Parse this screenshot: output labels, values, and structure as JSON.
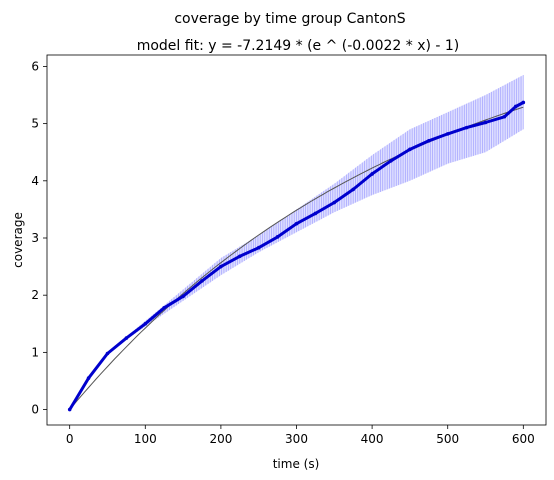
{
  "chart_data": {
    "type": "line",
    "title": "coverage by time group CantonS",
    "subtitle": "model fit: y = -7.2149 * (e ^ (-0.0022 * x) - 1)",
    "xlabel": "time (s)",
    "ylabel": "coverage",
    "xlim": [
      -30,
      630
    ],
    "ylim": [
      -0.27,
      6.2
    ],
    "xticks": [
      0,
      100,
      200,
      300,
      400,
      500,
      600
    ],
    "yticks": [
      0,
      1,
      2,
      3,
      4,
      5,
      6
    ],
    "grid": false,
    "fit": {
      "a": -7.2149,
      "b": -0.0022
    },
    "series": [
      {
        "style": "band",
        "color": "#0000ff",
        "x": [
          0,
          50,
          100,
          150,
          200,
          250,
          300,
          350,
          400,
          450,
          500,
          550,
          600
        ],
        "lower": [
          0,
          1.0,
          1.45,
          1.9,
          2.35,
          2.75,
          3.1,
          3.45,
          3.75,
          4.0,
          4.3,
          4.5,
          4.9
        ],
        "upper": [
          0,
          1.0,
          1.55,
          2.1,
          2.65,
          3.05,
          3.5,
          3.95,
          4.45,
          4.9,
          5.2,
          5.5,
          5.85
        ]
      },
      {
        "style": "line",
        "color": "#0000cd",
        "x": [
          0,
          25,
          50,
          75,
          100,
          125,
          150,
          175,
          200,
          225,
          250,
          275,
          300,
          325,
          350,
          375,
          400,
          425,
          450,
          475,
          500,
          525,
          550,
          575,
          590,
          600
        ],
        "y": [
          0,
          0.55,
          0.98,
          1.25,
          1.5,
          1.78,
          1.98,
          2.25,
          2.5,
          2.68,
          2.83,
          3.02,
          3.25,
          3.43,
          3.62,
          3.85,
          4.12,
          4.35,
          4.55,
          4.7,
          4.82,
          4.93,
          5.02,
          5.12,
          5.3,
          5.37
        ]
      }
    ]
  }
}
